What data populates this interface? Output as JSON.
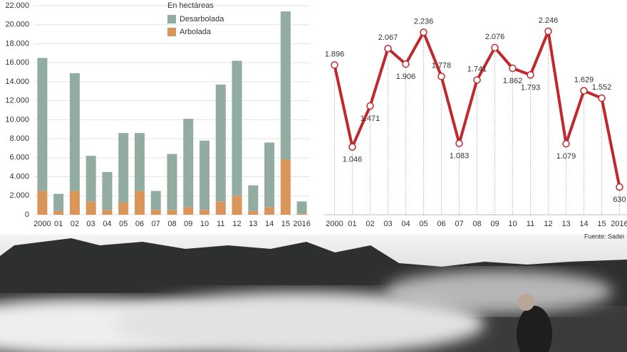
{
  "chart_data": [
    {
      "type": "stacked-bar",
      "subtitle": "En hectáreas",
      "categories": [
        "2000",
        "01",
        "02",
        "03",
        "04",
        "05",
        "06",
        "07",
        "08",
        "09",
        "10",
        "11",
        "12",
        "13",
        "14",
        "15",
        "2016"
      ],
      "series": [
        {
          "name": "Arbolada",
          "color": "#d9955a",
          "values": [
            2500,
            400,
            2500,
            1400,
            500,
            1300,
            2500,
            500,
            500,
            800,
            500,
            1400,
            2000,
            400,
            800,
            5800,
            100
          ]
        },
        {
          "name": "Desarbolada",
          "color": "#93aca2",
          "values": [
            14000,
            1800,
            12400,
            4800,
            4000,
            7300,
            6100,
            2000,
            5900,
            9300,
            7300,
            12300,
            14200,
            2700,
            6800,
            15600,
            1300
          ]
        }
      ],
      "ylim": [
        0,
        22000
      ],
      "yticks": [
        0,
        {
          "value": 2000,
          "label": "2.000"
        },
        {
          "value": 4000,
          "label": "4.000"
        },
        {
          "value": 6000,
          "label": "6.000"
        },
        {
          "value": 8000,
          "label": "8.000"
        },
        {
          "value": 10000,
          "label": "10.000"
        },
        {
          "value": 12000,
          "label": "12.000"
        },
        {
          "value": 14000,
          "label": "14.000"
        },
        {
          "value": 16000,
          "label": "16.000"
        },
        {
          "value": 18000,
          "label": "18.000"
        },
        {
          "value": 20000,
          "label": "20.000"
        },
        {
          "value": 22000,
          "label": "22.000"
        }
      ],
      "grid": true
    },
    {
      "type": "line",
      "color": "#c0282d",
      "source": "Fuente: Sadei",
      "categories": [
        "2000",
        "01",
        "02",
        "03",
        "04",
        "05",
        "06",
        "07",
        "08",
        "09",
        "10",
        "11",
        "12",
        "13",
        "14",
        "15",
        "2016"
      ],
      "values": [
        1896,
        1046,
        1471,
        2067,
        1906,
        2236,
        1778,
        1083,
        1741,
        2076,
        1862,
        1793,
        2246,
        1079,
        1629,
        1552,
        630
      ],
      "value_labels": [
        "1.896",
        "1.046",
        "1.471",
        "2.067",
        "1.906",
        "2.236",
        "1.778",
        "1.083",
        "1.741",
        "2.076",
        "1.862",
        "1.793",
        "2.246",
        "1.079",
        "1.629",
        "1.552",
        "630"
      ]
    }
  ]
}
